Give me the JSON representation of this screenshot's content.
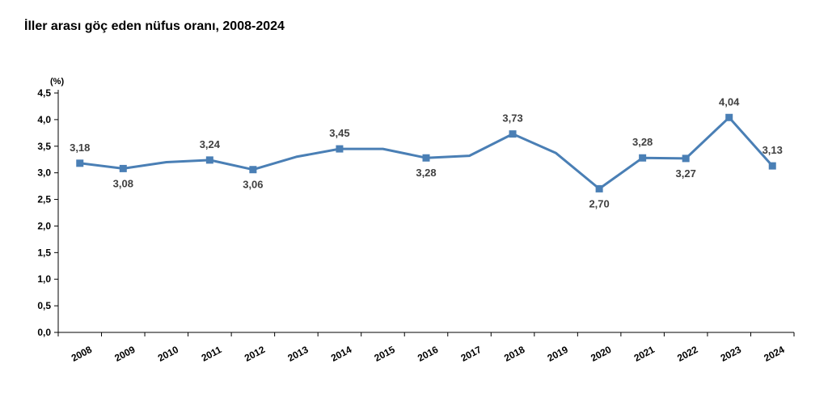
{
  "title": "İller arası göç eden nüfus oranı, 2008-2024",
  "chart_data": {
    "type": "line",
    "title": "İller arası göç eden nüfus oranı, 2008-2024",
    "unit_label": "(%)",
    "xlabel": "",
    "ylabel": "",
    "ylim": [
      0,
      4.5
    ],
    "yticks": [
      "0,0",
      "0,5",
      "1,0",
      "1,5",
      "2,0",
      "2,5",
      "3,0",
      "3,5",
      "4,0",
      "4,5"
    ],
    "grid": false,
    "line_color": "#4a7fb5",
    "categories": [
      "2008",
      "2009",
      "2010",
      "2011",
      "2012",
      "2013",
      "2014",
      "2015",
      "2016",
      "2017",
      "2018",
      "2019",
      "2020",
      "2021",
      "2022",
      "2023",
      "2024"
    ],
    "series": [
      {
        "values": [
          3.18,
          3.08,
          3.2,
          3.24,
          3.06,
          3.3,
          3.45,
          3.45,
          3.28,
          3.32,
          3.73,
          3.37,
          2.7,
          3.28,
          3.27,
          4.04,
          3.13
        ],
        "markers": [
          true,
          true,
          false,
          true,
          true,
          false,
          true,
          false,
          true,
          false,
          true,
          false,
          true,
          true,
          true,
          true,
          true
        ],
        "labels": [
          "3,18",
          "3,08",
          "",
          "3,24",
          "3,06",
          "",
          "3,45",
          "",
          "3,28",
          "",
          "3,73",
          "",
          "2,70",
          "3,28",
          "3,27",
          "4,04",
          "3,13"
        ],
        "label_pos": [
          "above",
          "below",
          "",
          "above",
          "below",
          "",
          "above",
          "",
          "below",
          "",
          "above",
          "",
          "below",
          "above",
          "below",
          "above",
          "above"
        ]
      }
    ]
  }
}
